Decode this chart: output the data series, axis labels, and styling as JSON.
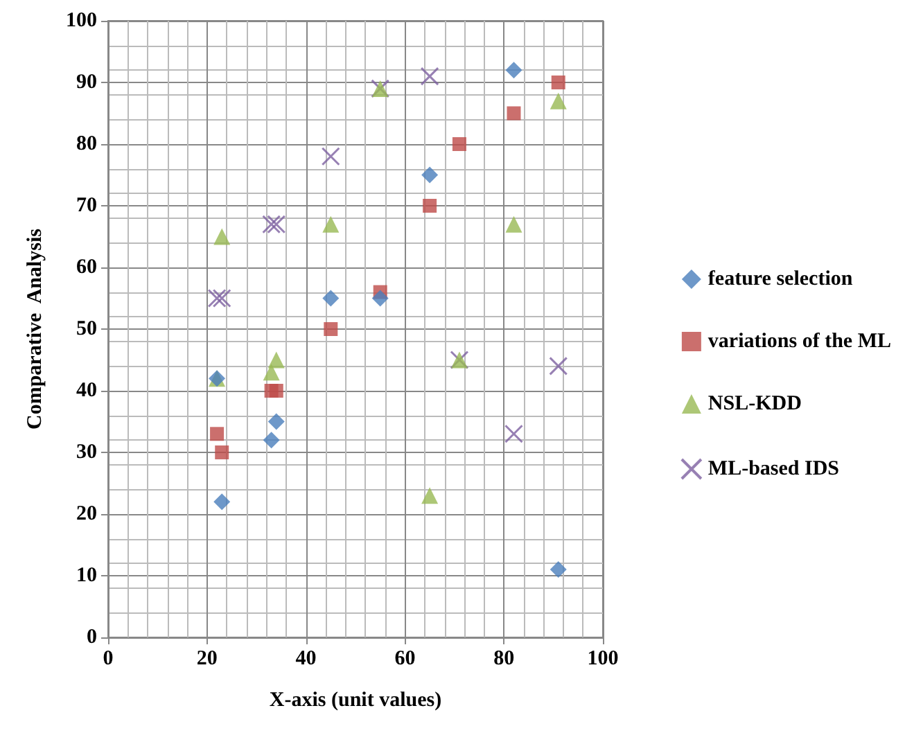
{
  "chart_data": {
    "type": "scatter",
    "xlabel": "X-axis (unit values)",
    "ylabel": "Comparative  Analysis",
    "xlim": [
      0,
      100
    ],
    "xticks": [
      0,
      20,
      40,
      60,
      80,
      100
    ],
    "ylim": [
      0,
      100
    ],
    "yticks": [
      0,
      10,
      20,
      30,
      40,
      50,
      60,
      70,
      80,
      90,
      100
    ],
    "grid": true,
    "legend": "right",
    "series": [
      {
        "name": "feature selection",
        "color": "#4a7ebb",
        "marker": "diamond",
        "x": [
          22,
          23,
          33,
          34,
          45,
          55,
          65,
          82,
          91
        ],
        "values": [
          42,
          22,
          32,
          35,
          55,
          55,
          75,
          92,
          11
        ]
      },
      {
        "name": "variations of the ML",
        "color": "#be4b48",
        "marker": "square",
        "x": [
          22,
          23,
          33,
          34,
          45,
          55,
          65,
          71,
          82,
          91
        ],
        "values": [
          33,
          30,
          40,
          40,
          50,
          56,
          70,
          80,
          85,
          90
        ]
      },
      {
        "name": "NSL-KDD",
        "color": "#98b954",
        "marker": "triangle",
        "x": [
          22,
          23,
          33,
          34,
          45,
          55,
          65,
          71,
          82,
          91
        ],
        "values": [
          42,
          65,
          43,
          45,
          67,
          89,
          23,
          45,
          67,
          87
        ]
      },
      {
        "name": "ML-based IDS",
        "color": "#7d60a0",
        "marker": "cross",
        "x": [
          22,
          23,
          33,
          34,
          45,
          55,
          65,
          71,
          82,
          91
        ],
        "values": [
          55,
          55,
          67,
          67,
          78,
          89,
          91,
          45,
          33,
          44
        ]
      }
    ]
  }
}
